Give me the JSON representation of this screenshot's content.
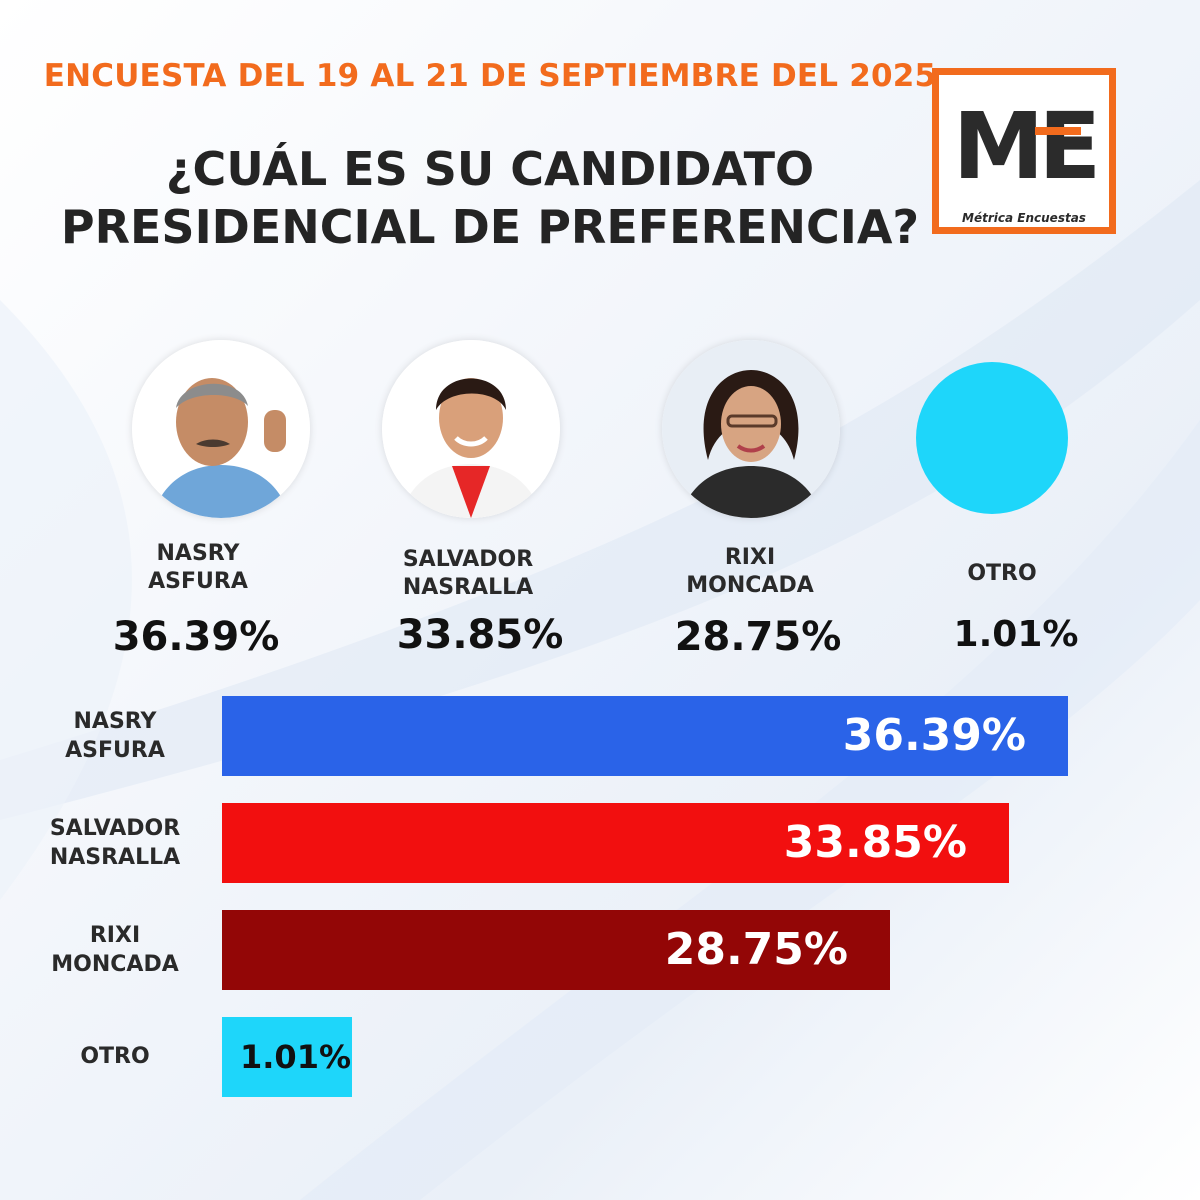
{
  "header": {
    "date_line": "ENCUESTA DEL 19 AL 21 DE SEPTIEMBRE DEL 2025",
    "question_line1": "¿CUÁL ES SU CANDIDATO",
    "question_line2": "PRESIDENCIAL DE PREFERENCIA?"
  },
  "logo": {
    "mark": "ME",
    "caption": "Métrica Encuestas",
    "color": "#f26b1d"
  },
  "candidates": [
    {
      "name_line1": "NASRY",
      "name_line2": "ASFURA",
      "pct_label": "36.39%"
    },
    {
      "name_line1": "SALVADOR",
      "name_line2": "NASRALLA",
      "pct_label": "33.85%"
    },
    {
      "name_line1": "RIXI",
      "name_line2": "MONCADA",
      "pct_label": "28.75%"
    },
    {
      "name_line1": "OTRO",
      "name_line2": "",
      "pct_label": "1.01%"
    }
  ],
  "chart_data": {
    "type": "bar",
    "orientation": "horizontal",
    "title": "",
    "xlabel": "",
    "ylabel": "",
    "categories": [
      {
        "line1": "NASRY",
        "line2": "ASFURA"
      },
      {
        "line1": "SALVADOR",
        "line2": "NASRALLA"
      },
      {
        "line1": "RIXI",
        "line2": "MONCADA"
      },
      {
        "line1": "OTRO",
        "line2": ""
      }
    ],
    "values": [
      36.39,
      33.85,
      28.75,
      1.01
    ],
    "value_labels": [
      "36.39%",
      "33.85%",
      "28.75%",
      "1.01%"
    ],
    "colors": [
      "#2a63e8",
      "#f20f0f",
      "#930606",
      "#1ed6fa"
    ],
    "grid": false,
    "legend": false
  }
}
